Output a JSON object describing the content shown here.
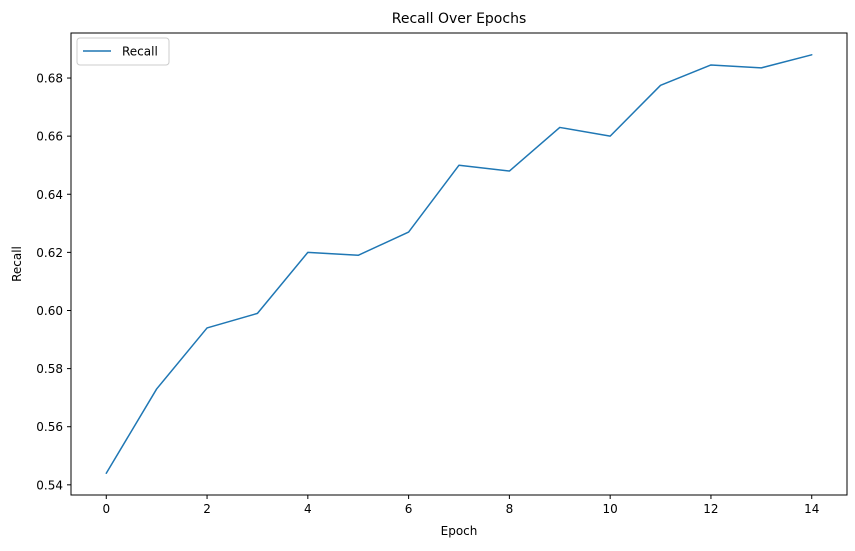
{
  "chart_data": {
    "type": "line",
    "title": "Recall Over Epochs",
    "xlabel": "Epoch",
    "ylabel": "Recall",
    "xlim": [
      -0.7,
      14.7
    ],
    "ylim": [
      0.5365,
      0.6955
    ],
    "x_ticks": [
      0,
      2,
      4,
      6,
      8,
      10,
      12,
      14
    ],
    "y_ticks": [
      0.54,
      0.56,
      0.58,
      0.6,
      0.62,
      0.64,
      0.66,
      0.68
    ],
    "y_tick_decimals": 2,
    "grid": false,
    "legend_position": "top-left",
    "series": [
      {
        "name": "Recall",
        "color": "#1f77b4",
        "x": [
          0,
          1,
          2,
          3,
          4,
          5,
          6,
          7,
          8,
          9,
          10,
          11,
          12,
          13,
          14
        ],
        "values": [
          0.544,
          0.573,
          0.594,
          0.599,
          0.62,
          0.619,
          0.627,
          0.65,
          0.648,
          0.663,
          0.66,
          0.6775,
          0.6845,
          0.6835,
          0.688
        ]
      }
    ]
  }
}
